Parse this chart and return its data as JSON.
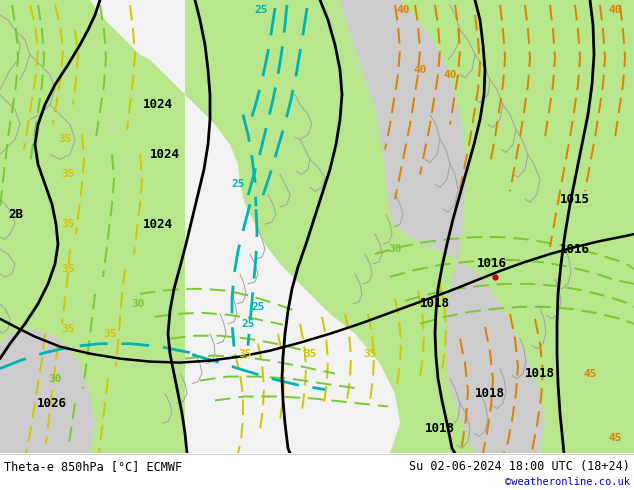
{
  "title_left": "Theta-e 850hPa [°C] ECMWF",
  "title_right": "Su 02-06-2024 18:00 UTC (18+24)",
  "copyright": "©weatheronline.co.uk",
  "bg_color": "#ffffff",
  "fig_width": 6.34,
  "fig_height": 4.9,
  "dpi": 100,
  "green_fill": "#b8e68c",
  "gray_fill": "#d8d8d8",
  "white_fill": "#e8e8e8",
  "black": "#000000",
  "yellow": "#d4c400",
  "green_line": "#78c832",
  "cyan": "#00b4b4",
  "orange": "#e08000",
  "gray_coast": "#a0a0a0",
  "copyright_color": "#0000cc",
  "red_dot": "#cc0000"
}
